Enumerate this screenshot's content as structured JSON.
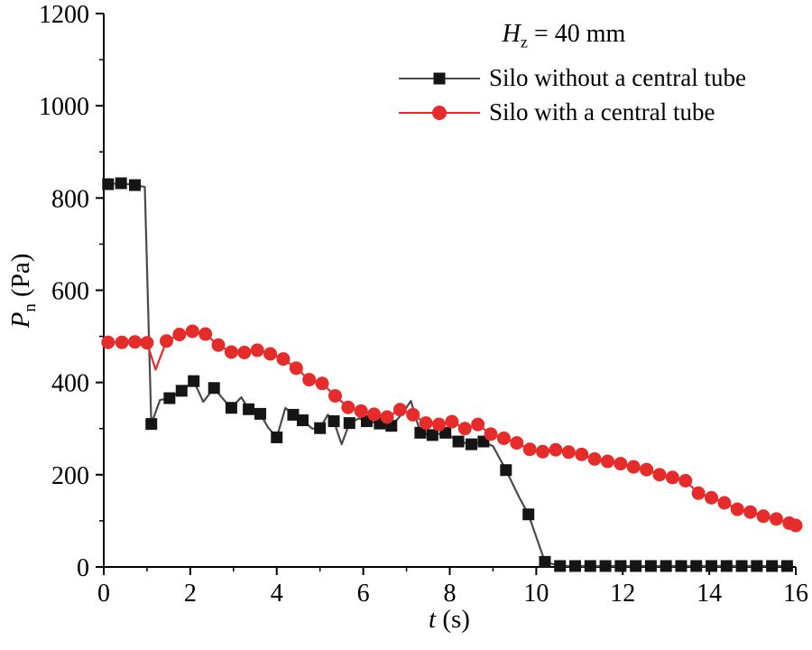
{
  "labels": {
    "annotation": {
      "var": "H",
      "sub": "z",
      "rest": " = 40 mm"
    },
    "xlabel": {
      "var": "t",
      "rest": " (s)"
    },
    "ylabel": {
      "var": "P",
      "sub": "n",
      "rest": " (Pa)"
    }
  },
  "chart_data": {
    "type": "line",
    "title": "",
    "xlabel": "t (s)",
    "ylabel": "P_n (Pa)",
    "annotation": "H_z = 40 mm",
    "legend_position": "top-right",
    "grid": false,
    "xlim": [
      0,
      16
    ],
    "ylim": [
      0,
      1200
    ],
    "xticks": [
      0,
      2,
      4,
      6,
      8,
      10,
      12,
      14,
      16
    ],
    "yticks": [
      0,
      200,
      400,
      600,
      800,
      1000,
      1200
    ],
    "series": [
      {
        "name": "Silo without a central tube",
        "marker": "square",
        "line_color": "#4a4a4a",
        "marker_color": "#151515",
        "points": [
          [
            0.1,
            830,
            1
          ],
          [
            0.4,
            832,
            1
          ],
          [
            0.72,
            828,
            1
          ],
          [
            0.95,
            824,
            0
          ],
          [
            1.1,
            310,
            1
          ],
          [
            1.3,
            362,
            0
          ],
          [
            1.52,
            366,
            1
          ],
          [
            1.8,
            382,
            1
          ],
          [
            2.08,
            403,
            1
          ],
          [
            2.3,
            358,
            0
          ],
          [
            2.55,
            388,
            1
          ],
          [
            2.78,
            362,
            0
          ],
          [
            2.95,
            345,
            1
          ],
          [
            3.18,
            368,
            0
          ],
          [
            3.35,
            342,
            1
          ],
          [
            3.62,
            332,
            1
          ],
          [
            3.8,
            302,
            0
          ],
          [
            4.0,
            281,
            1
          ],
          [
            4.2,
            345,
            0
          ],
          [
            4.38,
            330,
            1
          ],
          [
            4.6,
            318,
            1
          ],
          [
            4.82,
            300,
            0
          ],
          [
            5.0,
            301,
            1
          ],
          [
            5.18,
            330,
            0
          ],
          [
            5.32,
            316,
            1
          ],
          [
            5.5,
            266,
            0
          ],
          [
            5.68,
            312,
            1
          ],
          [
            5.9,
            322,
            0
          ],
          [
            6.08,
            316,
            1
          ],
          [
            6.38,
            311,
            1
          ],
          [
            6.65,
            306,
            1
          ],
          [
            6.9,
            332,
            0
          ],
          [
            7.1,
            360,
            0
          ],
          [
            7.32,
            291,
            1
          ],
          [
            7.6,
            286,
            1
          ],
          [
            7.9,
            291,
            1
          ],
          [
            8.2,
            272,
            1
          ],
          [
            8.5,
            266,
            1
          ],
          [
            8.78,
            272,
            1
          ],
          [
            9.0,
            262,
            0
          ],
          [
            9.3,
            210,
            1
          ],
          [
            9.6,
            152,
            0
          ],
          [
            9.82,
            114,
            1
          ],
          [
            10.2,
            11,
            1
          ],
          [
            10.55,
            2,
            1
          ],
          [
            10.9,
            2,
            1
          ],
          [
            11.25,
            2,
            1
          ],
          [
            11.6,
            2,
            1
          ],
          [
            11.95,
            2,
            1
          ],
          [
            12.3,
            2,
            1
          ],
          [
            12.65,
            2,
            1
          ],
          [
            13.0,
            2,
            1
          ],
          [
            13.35,
            2,
            1
          ],
          [
            13.7,
            2,
            1
          ],
          [
            14.05,
            2,
            1
          ],
          [
            14.4,
            2,
            1
          ],
          [
            14.75,
            2,
            1
          ],
          [
            15.1,
            2,
            1
          ],
          [
            15.45,
            2,
            1
          ],
          [
            15.8,
            2,
            1
          ]
        ]
      },
      {
        "name": "Silo with a central tube",
        "marker": "circle",
        "line_color": "#e62b2b",
        "marker_color": "#e62b2b",
        "points": [
          [
            0.1,
            487,
            1
          ],
          [
            0.42,
            487,
            1
          ],
          [
            0.72,
            488,
            1
          ],
          [
            1.0,
            486,
            1
          ],
          [
            1.2,
            428,
            0
          ],
          [
            1.45,
            490,
            1
          ],
          [
            1.75,
            504,
            1
          ],
          [
            2.05,
            511,
            1
          ],
          [
            2.35,
            505,
            1
          ],
          [
            2.65,
            481,
            1
          ],
          [
            2.95,
            466,
            1
          ],
          [
            3.25,
            465,
            1
          ],
          [
            3.55,
            470,
            1
          ],
          [
            3.85,
            462,
            1
          ],
          [
            4.15,
            451,
            1
          ],
          [
            4.45,
            431,
            1
          ],
          [
            4.75,
            406,
            1
          ],
          [
            5.05,
            398,
            1
          ],
          [
            5.35,
            371,
            1
          ],
          [
            5.65,
            346,
            1
          ],
          [
            5.95,
            338,
            1
          ],
          [
            6.25,
            331,
            1
          ],
          [
            6.55,
            325,
            1
          ],
          [
            6.85,
            341,
            1
          ],
          [
            7.15,
            330,
            1
          ],
          [
            7.45,
            312,
            1
          ],
          [
            7.75,
            309,
            1
          ],
          [
            8.05,
            315,
            1
          ],
          [
            8.35,
            300,
            1
          ],
          [
            8.65,
            309,
            1
          ],
          [
            8.95,
            288,
            1
          ],
          [
            9.25,
            279,
            1
          ],
          [
            9.55,
            269,
            1
          ],
          [
            9.85,
            255,
            1
          ],
          [
            10.15,
            250,
            1
          ],
          [
            10.45,
            254,
            1
          ],
          [
            10.75,
            249,
            1
          ],
          [
            11.05,
            244,
            1
          ],
          [
            11.35,
            234,
            1
          ],
          [
            11.65,
            229,
            1
          ],
          [
            11.95,
            224,
            1
          ],
          [
            12.25,
            217,
            1
          ],
          [
            12.55,
            211,
            1
          ],
          [
            12.85,
            200,
            1
          ],
          [
            13.15,
            194,
            1
          ],
          [
            13.45,
            187,
            1
          ],
          [
            13.75,
            160,
            1
          ],
          [
            14.05,
            150,
            1
          ],
          [
            14.35,
            139,
            1
          ],
          [
            14.65,
            125,
            1
          ],
          [
            14.95,
            119,
            1
          ],
          [
            15.25,
            110,
            1
          ],
          [
            15.55,
            104,
            1
          ],
          [
            15.85,
            95,
            1
          ],
          [
            16.0,
            90,
            1
          ]
        ]
      }
    ]
  }
}
